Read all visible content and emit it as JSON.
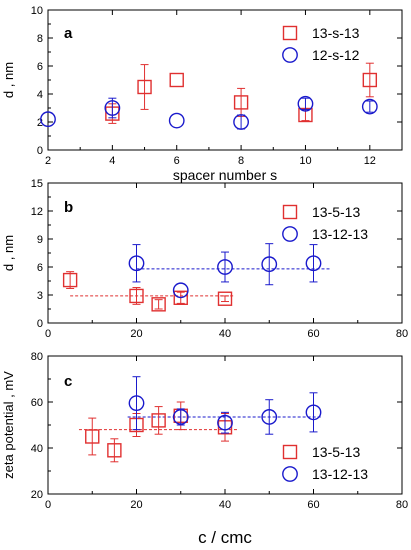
{
  "chart_data": [
    {
      "panel_label": "a",
      "type": "scatter",
      "xlabel": "spacer number s",
      "ylabel": "d , nm",
      "xlim": [
        2,
        13
      ],
      "ylim": [
        0,
        10
      ],
      "xticks": [
        2,
        4,
        6,
        8,
        10,
        12
      ],
      "yticks": [
        0,
        2,
        4,
        6,
        8,
        10
      ],
      "legend_position": "top-right",
      "series": [
        {
          "name": "13-s-13",
          "marker": "square",
          "color": "#e03030",
          "x": [
            4,
            5,
            6,
            8,
            10,
            12
          ],
          "y": [
            2.6,
            4.5,
            5.0,
            3.4,
            2.5,
            5.0
          ],
          "err": [
            0.7,
            1.6,
            0,
            1.0,
            0.4,
            1.2
          ]
        },
        {
          "name": "12-s-12",
          "marker": "circle",
          "color": "#1a1acc",
          "x": [
            2,
            4,
            6,
            8,
            10,
            12
          ],
          "y": [
            2.2,
            3.0,
            2.1,
            2.0,
            3.3,
            3.1
          ],
          "err": [
            0,
            0.7,
            0,
            0.5,
            0.4,
            0.4
          ]
        }
      ],
      "fit_lines": []
    },
    {
      "panel_label": "b",
      "type": "scatter",
      "xlabel": "",
      "ylabel": "d , nm",
      "xlim": [
        0,
        80
      ],
      "ylim": [
        0,
        15
      ],
      "xticks": [
        0,
        20,
        40,
        60,
        80
      ],
      "yticks": [
        0,
        3,
        6,
        9,
        12,
        15
      ],
      "legend_position": "top-right",
      "series": [
        {
          "name": "13-5-13",
          "marker": "square",
          "color": "#e03030",
          "x": [
            5,
            20,
            25,
            30,
            40
          ],
          "y": [
            4.6,
            2.9,
            2.0,
            2.7,
            2.6
          ],
          "err": [
            0.9,
            0.9,
            0.5,
            0.6,
            0.3
          ]
        },
        {
          "name": "13-12-13",
          "marker": "circle",
          "color": "#1a1acc",
          "x": [
            20,
            30,
            40,
            50,
            60
          ],
          "y": [
            6.4,
            3.5,
            6.0,
            6.3,
            6.4
          ],
          "err": [
            2.0,
            0,
            1.6,
            2.2,
            2.0
          ]
        }
      ],
      "fit_lines": [
        {
          "series": "13-5-13",
          "color": "#e03030",
          "x": [
            5,
            42
          ],
          "y": 2.9
        },
        {
          "series": "13-12-13",
          "color": "#1a1acc",
          "x": [
            20,
            64
          ],
          "y": 5.8
        }
      ]
    },
    {
      "panel_label": "c",
      "type": "scatter",
      "xlabel": "c / cmc",
      "ylabel": "zeta potential , mV",
      "xlim": [
        0,
        80
      ],
      "ylim": [
        20,
        80
      ],
      "xticks": [
        0,
        20,
        40,
        60,
        80
      ],
      "yticks": [
        20,
        40,
        60,
        80
      ],
      "legend_position": "bottom-right",
      "series": [
        {
          "name": "13-5-13",
          "marker": "square",
          "color": "#e03030",
          "x": [
            10,
            15,
            20,
            25,
            30,
            40
          ],
          "y": [
            45,
            39,
            50,
            52,
            54,
            49
          ],
          "err": [
            8,
            5,
            5,
            6,
            6,
            6
          ]
        },
        {
          "name": "13-12-13",
          "marker": "circle",
          "color": "#1a1acc",
          "x": [
            20,
            30,
            40,
            50,
            60
          ],
          "y": [
            59.5,
            53.5,
            51,
            53.5,
            55.5
          ],
          "err": [
            11.5,
            3.5,
            4.5,
            7.5,
            8.5
          ]
        }
      ],
      "fit_lines": [
        {
          "series": "13-5-13",
          "color": "#e03030",
          "x": [
            7,
            43
          ],
          "y": 48
        },
        {
          "series": "13-12-13",
          "color": "#1a1acc",
          "x": [
            18,
            62
          ],
          "y": 53.5
        }
      ]
    }
  ]
}
